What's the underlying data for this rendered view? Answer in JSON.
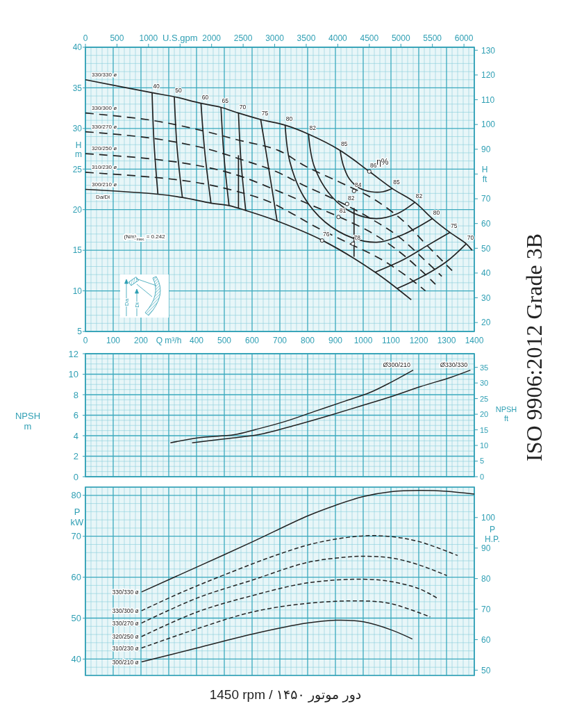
{
  "chart_data": [
    {
      "type": "line",
      "xlabel": "Q m³/h",
      "ylabel": "H m",
      "y2label": "H ft",
      "x2label": "U.S.gpm",
      "xlim": [
        0,
        1400
      ],
      "ylim": [
        5,
        40
      ],
      "x2lim": [
        0,
        6164
      ],
      "y2lim": [
        16.4,
        131.2
      ],
      "xticks": [
        0,
        {
          "value": 20,
          "label": null
        },
        {
          "value": 40,
          "label": null
        },
        {
          "value": 60,
          "label": null
        },
        {
          "value": 80,
          "label": null
        },
        100,
        {
          "value": 120,
          "label": null
        },
        {
          "value": 140,
          "label": null
        },
        {
          "value": 160,
          "label": null
        },
        {
          "value": 180,
          "label": null
        },
        200,
        {
          "value": 220,
          "label": null
        },
        {
          "value": 240,
          "label": null
        },
        {
          "value": 260,
          "label": null
        },
        {
          "value": 280,
          "label": null
        },
        {
          "value": 300,
          "label": null
        },
        {
          "value": 320,
          "label": null
        },
        {
          "value": 340,
          "label": null
        },
        {
          "value": 360,
          "label": null
        },
        {
          "value": 380,
          "label": null
        },
        400,
        {
          "value": 420,
          "label": null
        },
        {
          "value": 440,
          "label": null
        },
        {
          "value": 460,
          "label": null
        },
        {
          "value": 480,
          "label": null
        },
        500,
        {
          "value": 520,
          "label": null
        },
        {
          "value": 540,
          "label": null
        },
        {
          "value": 560,
          "label": null
        },
        {
          "value": 580,
          "label": null
        },
        600,
        {
          "value": 620,
          "label": null
        },
        {
          "value": 640,
          "label": null
        },
        {
          "value": 660,
          "label": null
        },
        {
          "value": 680,
          "label": null
        },
        700,
        {
          "value": 720,
          "label": null
        },
        {
          "value": 740,
          "label": null
        },
        {
          "value": 760,
          "label": null
        },
        {
          "value": 780,
          "label": null
        },
        800,
        {
          "value": 820,
          "label": null
        },
        {
          "value": 840,
          "label": null
        },
        {
          "value": 860,
          "label": null
        },
        {
          "value": 880,
          "label": null
        },
        900,
        {
          "value": 920,
          "label": null
        },
        {
          "value": 940,
          "label": null
        },
        {
          "value": 960,
          "label": null
        },
        {
          "value": 980,
          "label": null
        },
        1000,
        {
          "value": 1020,
          "label": null
        },
        {
          "value": 1040,
          "label": null
        },
        {
          "value": 1060,
          "label": null
        },
        {
          "value": 1080,
          "label": null
        },
        1100,
        {
          "value": 1120,
          "label": null
        },
        {
          "value": 1140,
          "label": null
        },
        {
          "value": 1160,
          "label": null
        },
        {
          "value": 1180,
          "label": null
        },
        1200,
        {
          "value": 1220,
          "label": null
        },
        {
          "value": 1240,
          "label": null
        },
        {
          "value": 1260,
          "label": null
        },
        {
          "value": 1280,
          "label": null
        },
        1300,
        {
          "value": 1320,
          "label": null
        },
        {
          "value": 1340,
          "label": null
        },
        {
          "value": 1360,
          "label": null
        },
        {
          "value": 1380,
          "label": null
        },
        1400
      ],
      "yticks": [
        5,
        {
          "value": 6,
          "label": null
        },
        {
          "value": 7,
          "label": null
        },
        {
          "value": 8,
          "label": null
        },
        {
          "value": 9,
          "label": null
        },
        10,
        {
          "value": 11,
          "label": null
        },
        {
          "value": 12,
          "label": null
        },
        {
          "value": 13,
          "label": null
        },
        {
          "value": 14,
          "label": null
        },
        15,
        {
          "value": 16,
          "label": null
        },
        {
          "value": 17,
          "label": null
        },
        {
          "value": 18,
          "label": null
        },
        {
          "value": 19,
          "label": null
        },
        20,
        {
          "value": 21,
          "label": null
        },
        {
          "value": 22,
          "label": null
        },
        {
          "value": 23,
          "label": null
        },
        {
          "value": 24,
          "label": null
        },
        25,
        {
          "value": 26,
          "label": null
        },
        {
          "value": 27,
          "label": null
        },
        {
          "value": 28,
          "label": null
        },
        {
          "value": 29,
          "label": null
        },
        30,
        {
          "value": 31,
          "label": null
        },
        {
          "value": 32,
          "label": null
        },
        {
          "value": 33,
          "label": null
        },
        {
          "value": 34,
          "label": null
        },
        35,
        {
          "value": 36,
          "label": null
        },
        {
          "value": 37,
          "label": null
        },
        {
          "value": 38,
          "label": null
        },
        {
          "value": 39,
          "label": null
        },
        40
      ],
      "x2ticks": [
        0,
        500,
        1000,
        {
          "value": 1500,
          "label": null
        },
        2000,
        2500,
        3000,
        3500,
        4000,
        4500,
        5000,
        5500,
        6000
      ],
      "y2ticks": [
        20,
        30,
        40,
        50,
        60,
        70,
        {
          "value": 80,
          "label": null
        },
        90,
        100,
        110,
        120,
        130
      ],
      "grid": true,
      "series": [
        {
          "name": "330/330 ø",
          "color": "#222222",
          "line_style": "solid",
          "x": [
            0,
            240,
            320,
            416,
            488,
            551,
            631,
            719,
            803,
            917,
            1022,
            1105,
            1186,
            1249,
            1312,
            1371,
            1392
          ],
          "values": [
            36.0,
            34.4,
            33.9,
            33.1,
            32.6,
            31.9,
            31.1,
            30.4,
            29.3,
            27.3,
            24.7,
            22.6,
            20.9,
            18.9,
            17.2,
            15.8,
            15.0
          ]
        },
        {
          "name": "330/300 ø",
          "color": "#222222",
          "line_style": "dashed",
          "x": [
            0,
            240,
            425,
            547,
            694,
            795,
            921,
            1038,
            1148,
            1224,
            1320
          ],
          "values": [
            31.9,
            31.0,
            29.7,
            28.6,
            27.3,
            25.3,
            23.3,
            21.3,
            18.5,
            15.8,
            12.5
          ]
        },
        {
          "name": "330/270 ø",
          "color": "#222222",
          "line_style": "dashed",
          "x": [
            0,
            240,
            425,
            559,
            686,
            786,
            913,
            1022,
            1123,
            1215,
            1283
          ],
          "values": [
            29.6,
            28.8,
            27.6,
            26.2,
            24.7,
            23.0,
            21.0,
            19.0,
            16.8,
            14.0,
            11.8
          ]
        },
        {
          "name": "320/250 ø",
          "color": "#222222",
          "line_style": "dashed",
          "x": [
            0,
            252,
            425,
            551,
            686,
            803,
            921,
            1038,
            1131,
            1215,
            1260
          ],
          "values": [
            26.9,
            26.2,
            25.3,
            24.2,
            22.4,
            20.7,
            19.0,
            17.0,
            14.8,
            12.3,
            10.8
          ]
        },
        {
          "name": "310/230 ø",
          "color": "#222222",
          "line_style": "dashed",
          "x": [
            0,
            273,
            425,
            551,
            660,
            740,
            828,
            946,
            1064,
            1165,
            1224
          ],
          "values": [
            24.6,
            23.9,
            23.2,
            22.2,
            21.0,
            19.6,
            17.9,
            15.9,
            13.9,
            11.6,
            10.0
          ]
        },
        {
          "name": "300/210 ø",
          "color": "#222222",
          "line_style": "solid",
          "x": [
            0,
            261,
            349,
            452,
            517,
            577,
            690,
            854,
            1043,
            1173
          ],
          "values": [
            22.5,
            21.9,
            21.5,
            20.8,
            20.5,
            19.9,
            18.6,
            16.2,
            12.3,
            8.9
          ]
        },
        {
          "color": "#222222",
          "line_style": "solid",
          "x": [
            240,
            247,
            261
          ],
          "values": [
            34.4,
            28.2,
            21.9
          ]
        },
        {
          "color": "#222222",
          "line_style": "solid",
          "x": [
            320,
            330,
            349
          ],
          "values": [
            33.9,
            27.6,
            21.5
          ]
        },
        {
          "color": "#222222",
          "line_style": "solid",
          "x": [
            416,
            430,
            452
          ],
          "values": [
            33.1,
            27.0,
            20.8
          ]
        },
        {
          "color": "#222222",
          "line_style": "solid",
          "x": [
            488,
            499,
            517
          ],
          "values": [
            32.6,
            26.5,
            20.5
          ]
        },
        {
          "color": "#222222",
          "line_style": "solid",
          "x": [
            551,
            560,
            577
          ],
          "values": [
            31.9,
            26.0,
            19.9
          ]
        },
        {
          "color": "#222222",
          "line_style": "solid",
          "x": [
            631,
            656,
            690
          ],
          "values": [
            31.1,
            25.9,
            18.6
          ]
        },
        {
          "color": "#222222",
          "line_style": "solid",
          "x": [
            719,
            736,
            786,
            862,
            963,
            1055,
            1148,
            1249
          ],
          "values": [
            30.4,
            25.9,
            21.6,
            18.5,
            16.5,
            16.0,
            17.0,
            18.9
          ]
        },
        {
          "color": "#222222",
          "line_style": "solid",
          "x": [
            803,
            824,
            887,
            963,
            1047,
            1123,
            1186
          ],
          "values": [
            29.3,
            25.3,
            21.6,
            19.6,
            18.9,
            19.5,
            20.9
          ]
        },
        {
          "color": "#222222",
          "line_style": "solid",
          "x": [
            917,
            928,
            950,
            985,
            1030,
            1070,
            1105
          ],
          "values": [
            27.3,
            25.5,
            23.8,
            22.7,
            22.2,
            22.2,
            22.6
          ]
        },
        {
          "color": "#222222",
          "line_style": "solid",
          "x": [
            1043,
            1148,
            1232,
            1312
          ],
          "values": [
            12.3,
            13.9,
            15.6,
            17.2
          ]
        },
        {
          "color": "#222222",
          "line_style": "solid",
          "x": [
            1123,
            1215,
            1300,
            1371
          ],
          "values": [
            10.3,
            11.8,
            13.6,
            15.8
          ]
        },
        {
          "color": "#222222",
          "line_style": "solid",
          "x": [
            551,
            551
          ],
          "values": [
            26.7,
            20.2
          ]
        },
        {
          "color": "#222222",
          "line_style": "solid",
          "x": [
            967,
            967
          ],
          "values": [
            20.2,
            14.2
          ]
        },
        {
          "type": "scatter",
          "marker": "circle",
          "color": "#222222",
          "x": [
            1022,
            967,
            942,
            911,
            963,
            852
          ],
          "values": [
            24.7,
            22.3,
            20.7,
            19.1,
            15.8,
            16.2
          ]
        }
      ],
      "annotations": [
        {
          "text": "40",
          "x": 240,
          "y": 34.4
        },
        {
          "text": "50",
          "x": 320,
          "y": 33.9
        },
        {
          "text": "60",
          "x": 416,
          "y": 33.1
        },
        {
          "text": "65",
          "x": 488,
          "y": 32.6
        },
        {
          "text": "70",
          "x": 551,
          "y": 31.9
        },
        {
          "text": "75",
          "x": 631,
          "y": 31.1
        },
        {
          "text": "80",
          "x": 719,
          "y": 30.4
        },
        {
          "text": "82",
          "x": 803,
          "y": 29.3
        },
        {
          "text": "85",
          "x": 917,
          "y": 27.3
        },
        {
          "text": "86",
          "x": 1022,
          "y": 24.7
        },
        {
          "text": "85",
          "x": 1105,
          "y": 22.6
        },
        {
          "text": "82",
          "x": 1186,
          "y": 20.9
        },
        {
          "text": "80",
          "x": 1249,
          "y": 18.9
        },
        {
          "text": "75",
          "x": 1312,
          "y": 17.2
        },
        {
          "text": "70",
          "x": 1371,
          "y": 15.8
        },
        {
          "text": "84",
          "x": 967,
          "y": 22.3
        },
        {
          "text": "82",
          "x": 942,
          "y": 20.7
        },
        {
          "text": "81",
          "x": 911,
          "y": 19.1
        },
        {
          "text": "78",
          "x": 963,
          "y": 15.8
        },
        {
          "text": "76",
          "x": 852,
          "y": 16.2
        },
        "η%",
        "Da/Di",
        "(N/n)$_{max.}$ = 0.242",
        "Da",
        "Di"
      ]
    },
    {
      "type": "line",
      "ylabel": "NPSH m",
      "y2label": "NPSH ft",
      "xlim": [
        0,
        1400
      ],
      "ylim": [
        0,
        12
      ],
      "y2lim": [
        0,
        39.37
      ],
      "xticks": [
        0,
        {
          "value": 20,
          "label": null
        },
        {
          "value": 40,
          "label": null
        },
        {
          "value": 60,
          "label": null
        },
        {
          "value": 80,
          "label": null
        },
        100,
        {
          "value": 120,
          "label": null
        },
        {
          "value": 140,
          "label": null
        },
        {
          "value": 160,
          "label": null
        },
        {
          "value": 180,
          "label": null
        },
        200,
        {
          "value": 220,
          "label": null
        },
        {
          "value": 240,
          "label": null
        },
        {
          "value": 260,
          "label": null
        },
        {
          "value": 280,
          "label": null
        },
        300,
        {
          "value": 320,
          "label": null
        },
        {
          "value": 340,
          "label": null
        },
        {
          "value": 360,
          "label": null
        },
        {
          "value": 380,
          "label": null
        },
        400,
        {
          "value": 420,
          "label": null
        },
        {
          "value": 440,
          "label": null
        },
        {
          "value": 460,
          "label": null
        },
        {
          "value": 480,
          "label": null
        },
        500,
        {
          "value": 520,
          "label": null
        },
        {
          "value": 540,
          "label": null
        },
        {
          "value": 560,
          "label": null
        },
        {
          "value": 580,
          "label": null
        },
        600,
        {
          "value": 620,
          "label": null
        },
        {
          "value": 640,
          "label": null
        },
        {
          "value": 660,
          "label": null
        },
        {
          "value": 680,
          "label": null
        },
        700,
        {
          "value": 720,
          "label": null
        },
        {
          "value": 740,
          "label": null
        },
        {
          "value": 760,
          "label": null
        },
        {
          "value": 780,
          "label": null
        },
        800,
        {
          "value": 820,
          "label": null
        },
        {
          "value": 840,
          "label": null
        },
        {
          "value": 860,
          "label": null
        },
        {
          "value": 880,
          "label": null
        },
        900,
        {
          "value": 920,
          "label": null
        },
        {
          "value": 940,
          "label": null
        },
        {
          "value": 960,
          "label": null
        },
        {
          "value": 980,
          "label": null
        },
        1000,
        {
          "value": 1020,
          "label": null
        },
        {
          "value": 1040,
          "label": null
        },
        {
          "value": 1060,
          "label": null
        },
        {
          "value": 1080,
          "label": null
        },
        1100,
        {
          "value": 1120,
          "label": null
        },
        {
          "value": 1140,
          "label": null
        },
        {
          "value": 1160,
          "label": null
        },
        {
          "value": 1180,
          "label": null
        },
        1200,
        {
          "value": 1220,
          "label": null
        },
        {
          "value": 1240,
          "label": null
        },
        {
          "value": 1260,
          "label": null
        },
        {
          "value": 1280,
          "label": null
        },
        1300,
        {
          "value": 1320,
          "label": null
        },
        {
          "value": 1340,
          "label": null
        },
        {
          "value": 1360,
          "label": null
        },
        {
          "value": 1380,
          "label": null
        },
        1400
      ],
      "yticks": [
        0,
        {
          "value": 0.5,
          "label": null
        },
        {
          "value": 1,
          "label": null
        },
        {
          "value": 1.5,
          "label": null
        },
        2,
        {
          "value": 2.5,
          "label": null
        },
        {
          "value": 3,
          "label": null
        },
        {
          "value": 3.5,
          "label": null
        },
        4,
        {
          "value": 4.5,
          "label": null
        },
        {
          "value": 5,
          "label": null
        },
        {
          "value": 5.5,
          "label": null
        },
        6,
        {
          "value": 6.5,
          "label": null
        },
        {
          "value": 7,
          "label": null
        },
        {
          "value": 7.5,
          "label": null
        },
        8,
        {
          "value": 8.5,
          "label": null
        },
        {
          "value": 9,
          "label": null
        },
        {
          "value": 9.5,
          "label": null
        },
        10,
        {
          "value": 10.5,
          "label": null
        },
        {
          "value": 11,
          "label": null
        },
        {
          "value": 11.5,
          "label": null
        },
        12
      ],
      "y2ticks": [
        0,
        5,
        10,
        15,
        20,
        25,
        30,
        35
      ],
      "grid": true,
      "tick_labels": "y",
      "series": [
        {
          "name": "Ø300/210",
          "color": "#222222",
          "line_style": "solid",
          "x": [
            306,
            406,
            536,
            612,
            720,
            828,
            937,
            1023,
            1099,
            1180
          ],
          "values": [
            3.3,
            3.8,
            4.1,
            4.6,
            5.4,
            6.4,
            7.4,
            8.2,
            9.2,
            10.4
          ]
        },
        {
          "name": "Ø330/330",
          "color": "#222222",
          "line_style": "solid",
          "x": [
            384,
            503,
            623,
            753,
            882,
            991,
            1099,
            1207,
            1316,
            1386
          ],
          "values": [
            3.3,
            3.7,
            4.1,
            5.0,
            6.0,
            6.9,
            7.8,
            8.8,
            9.7,
            10.4
          ]
        }
      ],
      "annotations": [
        "ISO 9906:2012 Grade 3B"
      ]
    },
    {
      "type": "line",
      "ylabel": "P kW",
      "y2label": "P H.P.",
      "xlim": [
        0,
        1400
      ],
      "ylim": [
        36,
        82
      ],
      "y2lim": [
        48.28,
        109.96
      ],
      "xticks": [
        0,
        {
          "value": 20,
          "label": null
        },
        {
          "value": 40,
          "label": null
        },
        {
          "value": 60,
          "label": null
        },
        {
          "value": 80,
          "label": null
        },
        100,
        {
          "value": 120,
          "label": null
        },
        {
          "value": 140,
          "label": null
        },
        {
          "value": 160,
          "label": null
        },
        {
          "value": 180,
          "label": null
        },
        200,
        {
          "value": 220,
          "label": null
        },
        {
          "value": 240,
          "label": null
        },
        {
          "value": 260,
          "label": null
        },
        {
          "value": 280,
          "label": null
        },
        300,
        {
          "value": 320,
          "label": null
        },
        {
          "value": 340,
          "label": null
        },
        {
          "value": 360,
          "label": null
        },
        {
          "value": 380,
          "label": null
        },
        400,
        {
          "value": 420,
          "label": null
        },
        {
          "value": 440,
          "label": null
        },
        {
          "value": 460,
          "label": null
        },
        {
          "value": 480,
          "label": null
        },
        500,
        {
          "value": 520,
          "label": null
        },
        {
          "value": 540,
          "label": null
        },
        {
          "value": 560,
          "label": null
        },
        {
          "value": 580,
          "label": null
        },
        600,
        {
          "value": 620,
          "label": null
        },
        {
          "value": 640,
          "label": null
        },
        {
          "value": 660,
          "label": null
        },
        {
          "value": 680,
          "label": null
        },
        700,
        {
          "value": 720,
          "label": null
        },
        {
          "value": 740,
          "label": null
        },
        {
          "value": 760,
          "label": null
        },
        {
          "value": 780,
          "label": null
        },
        800,
        {
          "value": 820,
          "label": null
        },
        {
          "value": 840,
          "label": null
        },
        {
          "value": 860,
          "label": null
        },
        {
          "value": 880,
          "label": null
        },
        900,
        {
          "value": 920,
          "label": null
        },
        {
          "value": 940,
          "label": null
        },
        {
          "value": 960,
          "label": null
        },
        {
          "value": 980,
          "label": null
        },
        1000,
        {
          "value": 1020,
          "label": null
        },
        {
          "value": 1040,
          "label": null
        },
        {
          "value": 1060,
          "label": null
        },
        {
          "value": 1080,
          "label": null
        },
        1100,
        {
          "value": 1120,
          "label": null
        },
        {
          "value": 1140,
          "label": null
        },
        {
          "value": 1160,
          "label": null
        },
        {
          "value": 1180,
          "label": null
        },
        1200,
        {
          "value": 1220,
          "label": null
        },
        {
          "value": 1240,
          "label": null
        },
        {
          "value": 1260,
          "label": null
        },
        {
          "value": 1280,
          "label": null
        },
        1300,
        {
          "value": 1320,
          "label": null
        },
        {
          "value": 1340,
          "label": null
        },
        {
          "value": 1360,
          "label": null
        },
        {
          "value": 1380,
          "label": null
        },
        1400
      ],
      "yticks": [
        {
          "value": 36,
          "label": null
        },
        {
          "value": 38,
          "label": null
        },
        40,
        {
          "value": 42,
          "label": null
        },
        {
          "value": 44,
          "label": null
        },
        {
          "value": 46,
          "label": null
        },
        {
          "value": 48,
          "label": null
        },
        50,
        {
          "value": 52,
          "label": null
        },
        {
          "value": 54,
          "label": null
        },
        {
          "value": 56,
          "label": null
        },
        {
          "value": 58,
          "label": null
        },
        60,
        {
          "value": 62,
          "label": null
        },
        {
          "value": 64,
          "label": null
        },
        {
          "value": 66,
          "label": null
        },
        {
          "value": 68,
          "label": null
        },
        70,
        {
          "value": 72,
          "label": null
        },
        {
          "value": 74,
          "label": null
        },
        {
          "value": 76,
          "label": null
        },
        {
          "value": 78,
          "label": null
        },
        80,
        {
          "value": 82,
          "label": null
        }
      ],
      "y2ticks": [
        50,
        60,
        70,
        80,
        90,
        100
      ],
      "grid": true,
      "tick_labels": "y",
      "series": [
        {
          "name": "330/330 ø",
          "color": "#222222",
          "line_style": "solid",
          "x": [
            202,
            402,
            603,
            801,
            902,
            1001,
            1102,
            1201,
            1301,
            1400
          ],
          "values": [
            56.4,
            62.5,
            68.7,
            75.0,
            77.6,
            79.7,
            80.9,
            81.2,
            81.0,
            80.3
          ]
        },
        {
          "name": "330/300 ø",
          "color": "#222222",
          "line_style": "dashed",
          "x": [
            202,
            343,
            501,
            700,
            839,
            1001,
            1102,
            1201,
            1340
          ],
          "values": [
            51.8,
            56.2,
            60.6,
            65.7,
            68.5,
            70.1,
            69.9,
            68.7,
            65.3
          ]
        },
        {
          "name": "330/270 ø",
          "color": "#222222",
          "line_style": "dashed",
          "x": [
            202,
            402,
            601,
            799,
            938,
            1001,
            1102,
            1201,
            1301
          ],
          "values": [
            48.8,
            54.9,
            59.3,
            63.6,
            64.9,
            65.1,
            64.7,
            63.0,
            60.4
          ]
        },
        {
          "name": "320/250 ø",
          "color": "#222222",
          "line_style": "dashed",
          "x": [
            202,
            402,
            601,
            799,
            1001,
            1102,
            1201,
            1266
          ],
          "values": [
            45.5,
            51.5,
            55.5,
            58.6,
            59.5,
            58.9,
            57.2,
            54.9
          ]
        },
        {
          "name": "310/230 ø",
          "color": "#222222",
          "line_style": "dashed",
          "x": [
            202,
            402,
            601,
            799,
            1001,
            1102,
            1241
          ],
          "values": [
            42.7,
            47.4,
            51.5,
            53.6,
            54.2,
            53.5,
            50.3
          ]
        },
        {
          "name": "300/210 ø",
          "color": "#222222",
          "line_style": "solid",
          "x": [
            202,
            402,
            601,
            799,
            902,
            1001,
            1102,
            1177
          ],
          "values": [
            39.3,
            42.7,
            46.1,
            48.8,
            49.5,
            49.1,
            47.1,
            44.9
          ]
        }
      ],
      "annotations": [
        "1450 rpm / دور موتور ۱۴۵۰"
      ]
    }
  ]
}
